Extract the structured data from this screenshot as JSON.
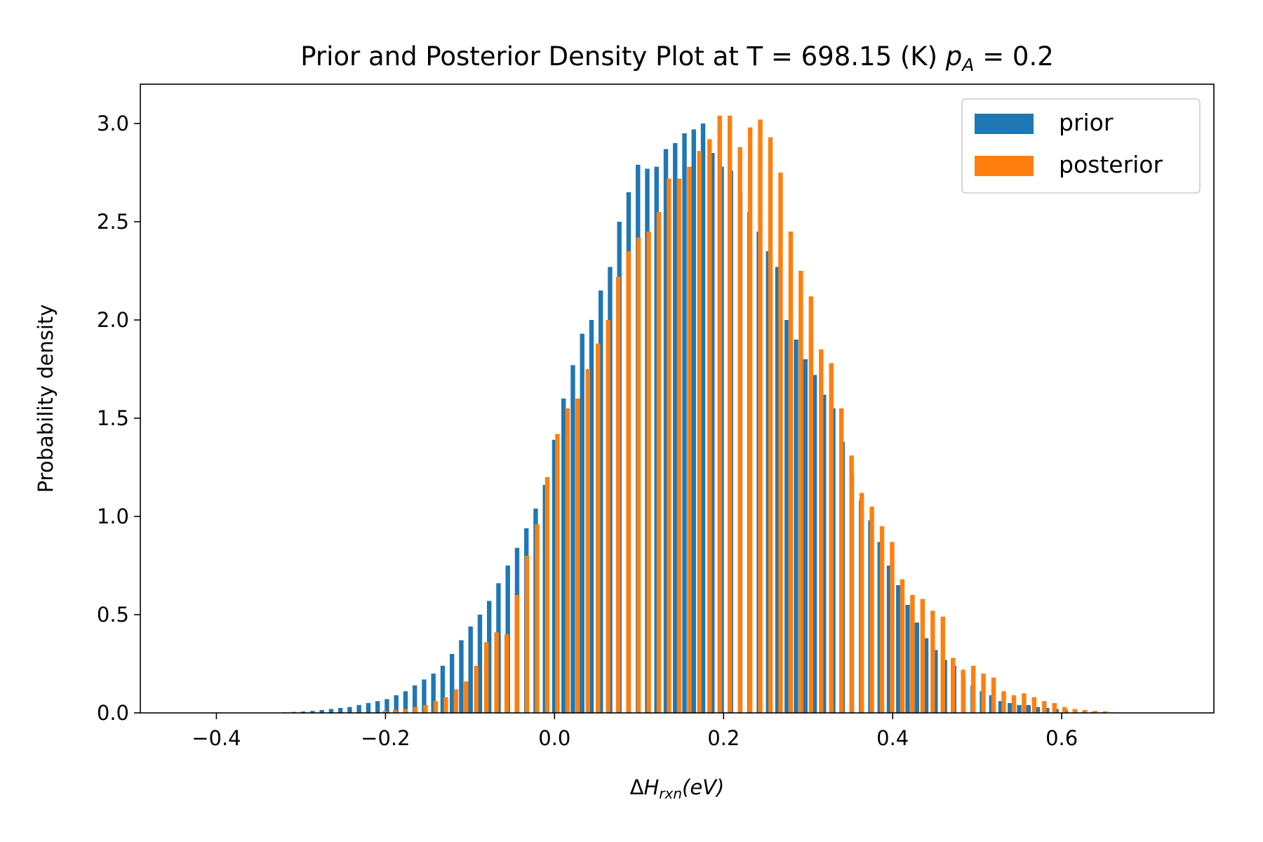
{
  "chart_data": {
    "type": "bar",
    "title_main": "Prior and Posterior Density Plot at T = 698.15 (K) ",
    "title_sym": "p",
    "title_sub": "A",
    "title_tail": " = 0.2",
    "xlabel_delta": "Δ",
    "xlabel_sym": "H",
    "xlabel_sub": "rxn",
    "xlabel_tail": "(eV)",
    "ylabel": "Probability density",
    "xlim": [
      -0.49,
      0.78
    ],
    "ylim": [
      0,
      3.2
    ],
    "xticks": [
      -0.4,
      -0.2,
      0.0,
      0.2,
      0.4,
      0.6
    ],
    "xtick_labels": [
      "−0.4",
      "−0.2",
      "0.0",
      "0.2",
      "0.4",
      "0.6"
    ],
    "yticks": [
      0.0,
      0.5,
      1.0,
      1.5,
      2.0,
      2.5,
      3.0
    ],
    "ytick_labels": [
      "0.0",
      "0.5",
      "1.0",
      "1.5",
      "2.0",
      "2.5",
      "3.0"
    ],
    "legend_position": "top-right",
    "grid": false,
    "series": [
      {
        "name": "prior",
        "color": "#1f77b4",
        "x": [
          -0.3193,
          -0.3083,
          -0.2973,
          -0.2863,
          -0.2753,
          -0.2643,
          -0.2533,
          -0.2423,
          -0.2313,
          -0.2203,
          -0.2093,
          -0.1983,
          -0.1873,
          -0.1763,
          -0.1653,
          -0.1543,
          -0.1433,
          -0.1323,
          -0.1213,
          -0.1103,
          -0.0993,
          -0.0883,
          -0.0773,
          -0.0663,
          -0.0553,
          -0.0443,
          -0.0333,
          -0.0223,
          -0.0113,
          -0.0003,
          0.0107,
          0.0217,
          0.0327,
          0.0437,
          0.0547,
          0.0657,
          0.0767,
          0.0877,
          0.0987,
          0.1097,
          0.1207,
          0.1317,
          0.1427,
          0.1537,
          0.1647,
          0.1757,
          0.1867,
          0.1977,
          0.2087,
          0.2197,
          0.2307,
          0.2417,
          0.2527,
          0.2637,
          0.2747,
          0.2857,
          0.2967,
          0.3077,
          0.3187,
          0.3297,
          0.3407,
          0.3517,
          0.3627,
          0.3737,
          0.3847,
          0.3957,
          0.4067,
          0.4177,
          0.4287,
          0.4397,
          0.4507,
          0.4617,
          0.4727,
          0.4837,
          0.4947,
          0.5057,
          0.5167,
          0.5277,
          0.5387,
          0.5497,
          0.5607,
          0.5717,
          0.5827,
          0.5937,
          0.6047,
          0.6157,
          0.6267,
          0.6377,
          0.6487,
          0.6597
        ],
        "values": [
          0.003,
          0.005,
          0.007,
          0.01,
          0.015,
          0.02,
          0.025,
          0.03,
          0.04,
          0.05,
          0.06,
          0.07,
          0.09,
          0.11,
          0.14,
          0.17,
          0.2,
          0.24,
          0.3,
          0.37,
          0.44,
          0.5,
          0.57,
          0.66,
          0.75,
          0.84,
          0.94,
          1.04,
          1.16,
          1.39,
          1.6,
          1.77,
          1.93,
          2.0,
          2.15,
          2.27,
          2.5,
          2.65,
          2.79,
          2.77,
          2.78,
          2.87,
          2.9,
          2.95,
          2.97,
          3.0,
          2.85,
          2.78,
          2.76,
          2.65,
          2.55,
          2.45,
          2.35,
          2.27,
          2.0,
          1.9,
          1.8,
          1.72,
          1.62,
          1.55,
          1.38,
          1.22,
          1.08,
          0.98,
          0.87,
          0.75,
          0.65,
          0.55,
          0.46,
          0.38,
          0.32,
          0.27,
          0.24,
          0.18,
          0.14,
          0.11,
          0.09,
          0.06,
          0.05,
          0.04,
          0.04,
          0.03,
          0.025,
          0.02,
          0.015,
          0.01,
          0.008,
          0.005,
          0.003,
          0.002
        ]
      },
      {
        "name": "posterior",
        "color": "#ff7f0e",
        "x": [
          -0.2006,
          -0.1886,
          -0.1766,
          -0.1646,
          -0.1526,
          -0.1406,
          -0.1286,
          -0.1166,
          -0.1046,
          -0.0926,
          -0.0806,
          -0.0686,
          -0.0566,
          -0.0446,
          -0.0326,
          -0.0206,
          -0.0086,
          0.0034,
          0.0154,
          0.0274,
          0.0394,
          0.0514,
          0.0634,
          0.0754,
          0.0874,
          0.0994,
          0.1114,
          0.1234,
          0.1354,
          0.1474,
          0.1594,
          0.1714,
          0.1834,
          0.1954,
          0.2074,
          0.2194,
          0.2314,
          0.2434,
          0.2554,
          0.2674,
          0.2794,
          0.2914,
          0.3034,
          0.3154,
          0.3274,
          0.3394,
          0.3514,
          0.3634,
          0.3754,
          0.3874,
          0.3994,
          0.4114,
          0.4234,
          0.4354,
          0.4474,
          0.4594,
          0.4714,
          0.4834,
          0.4954,
          0.5074,
          0.5194,
          0.5314,
          0.5434,
          0.5554,
          0.5674,
          0.5794,
          0.5914,
          0.6034,
          0.6154,
          0.6274,
          0.6394,
          0.6514
        ],
        "values": [
          0.01,
          0.015,
          0.02,
          0.03,
          0.04,
          0.06,
          0.08,
          0.12,
          0.16,
          0.24,
          0.36,
          0.41,
          0.4,
          0.6,
          0.8,
          0.96,
          1.2,
          1.42,
          1.55,
          1.6,
          1.75,
          1.88,
          2.0,
          2.22,
          2.35,
          2.42,
          2.45,
          2.55,
          2.72,
          2.72,
          2.78,
          2.86,
          2.92,
          3.04,
          3.04,
          2.88,
          2.98,
          3.02,
          2.93,
          2.75,
          2.45,
          2.25,
          2.12,
          1.85,
          1.78,
          1.55,
          1.31,
          1.12,
          1.05,
          0.95,
          0.87,
          0.68,
          0.6,
          0.58,
          0.52,
          0.49,
          0.28,
          0.22,
          0.24,
          0.2,
          0.18,
          0.11,
          0.09,
          0.1,
          0.08,
          0.06,
          0.05,
          0.03,
          0.02,
          0.015,
          0.01,
          0.008
        ]
      }
    ]
  }
}
